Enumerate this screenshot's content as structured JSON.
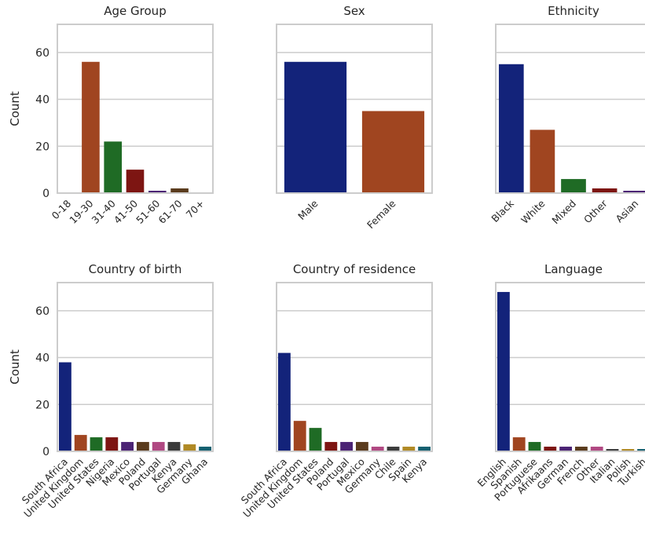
{
  "colors": [
    "#13237a",
    "#a04520",
    "#1f6b25",
    "#7d1512",
    "#4b2374",
    "#5a3b1d",
    "#b04882",
    "#3b3b3b",
    "#b08a25",
    "#156070"
  ],
  "chart_data": [
    {
      "type": "bar",
      "title": "Age Group",
      "ylabel": "Count",
      "ylim": [
        0,
        72
      ],
      "yticks": [
        "0",
        "20",
        "40",
        "60"
      ],
      "grid": true,
      "categories": [
        "0-18",
        "19-30",
        "31-40",
        "41-50",
        "51-60",
        "61-70",
        "70+"
      ],
      "values": [
        0,
        56,
        22,
        10,
        1,
        2,
        0
      ]
    },
    {
      "type": "bar",
      "title": "Sex",
      "ylabel": "",
      "ylim": [
        0,
        72
      ],
      "yticks": [
        "",
        "",
        "",
        ""
      ],
      "grid": true,
      "categories": [
        "Male",
        "Female"
      ],
      "values": [
        56,
        35
      ]
    },
    {
      "type": "bar",
      "title": "Ethnicity",
      "ylabel": "",
      "ylim": [
        0,
        72
      ],
      "yticks": [
        "",
        "",
        "",
        ""
      ],
      "grid": true,
      "categories": [
        "Black",
        "White",
        "Mixed",
        "Other",
        "Asian"
      ],
      "values": [
        55,
        27,
        6,
        2,
        1
      ]
    },
    {
      "type": "bar",
      "title": "Country of birth",
      "ylabel": "Count",
      "ylim": [
        0,
        72
      ],
      "yticks": [
        "0",
        "20",
        "40",
        "60"
      ],
      "grid": true,
      "categories": [
        "South Africa",
        "United Kingdom",
        "United States",
        "Nigeria",
        "Mexico",
        "Poland",
        "Portugal",
        "Kenya",
        "Germany",
        "Ghana"
      ],
      "values": [
        38,
        7,
        6,
        6,
        4,
        4,
        4,
        4,
        3,
        2
      ]
    },
    {
      "type": "bar",
      "title": "Country of residence",
      "ylabel": "",
      "ylim": [
        0,
        72
      ],
      "yticks": [
        "",
        "",
        "",
        ""
      ],
      "grid": true,
      "categories": [
        "South Africa",
        "United Kingdom",
        "United States",
        "Poland",
        "Portugal",
        "Mexico",
        "Germany",
        "Chile",
        "Spain",
        "Kenya"
      ],
      "values": [
        42,
        13,
        10,
        4,
        4,
        4,
        2,
        2,
        2,
        2
      ]
    },
    {
      "type": "bar",
      "title": "Language",
      "ylabel": "",
      "ylim": [
        0,
        72
      ],
      "yticks": [
        "",
        "",
        "",
        ""
      ],
      "grid": true,
      "categories": [
        "English",
        "Spanish",
        "Portuguese",
        "Afrikaans",
        "German",
        "French",
        "Other",
        "Italian",
        "Polish",
        "Turkish"
      ],
      "values": [
        68,
        6,
        4,
        2,
        2,
        2,
        2,
        1,
        1,
        1
      ]
    }
  ]
}
